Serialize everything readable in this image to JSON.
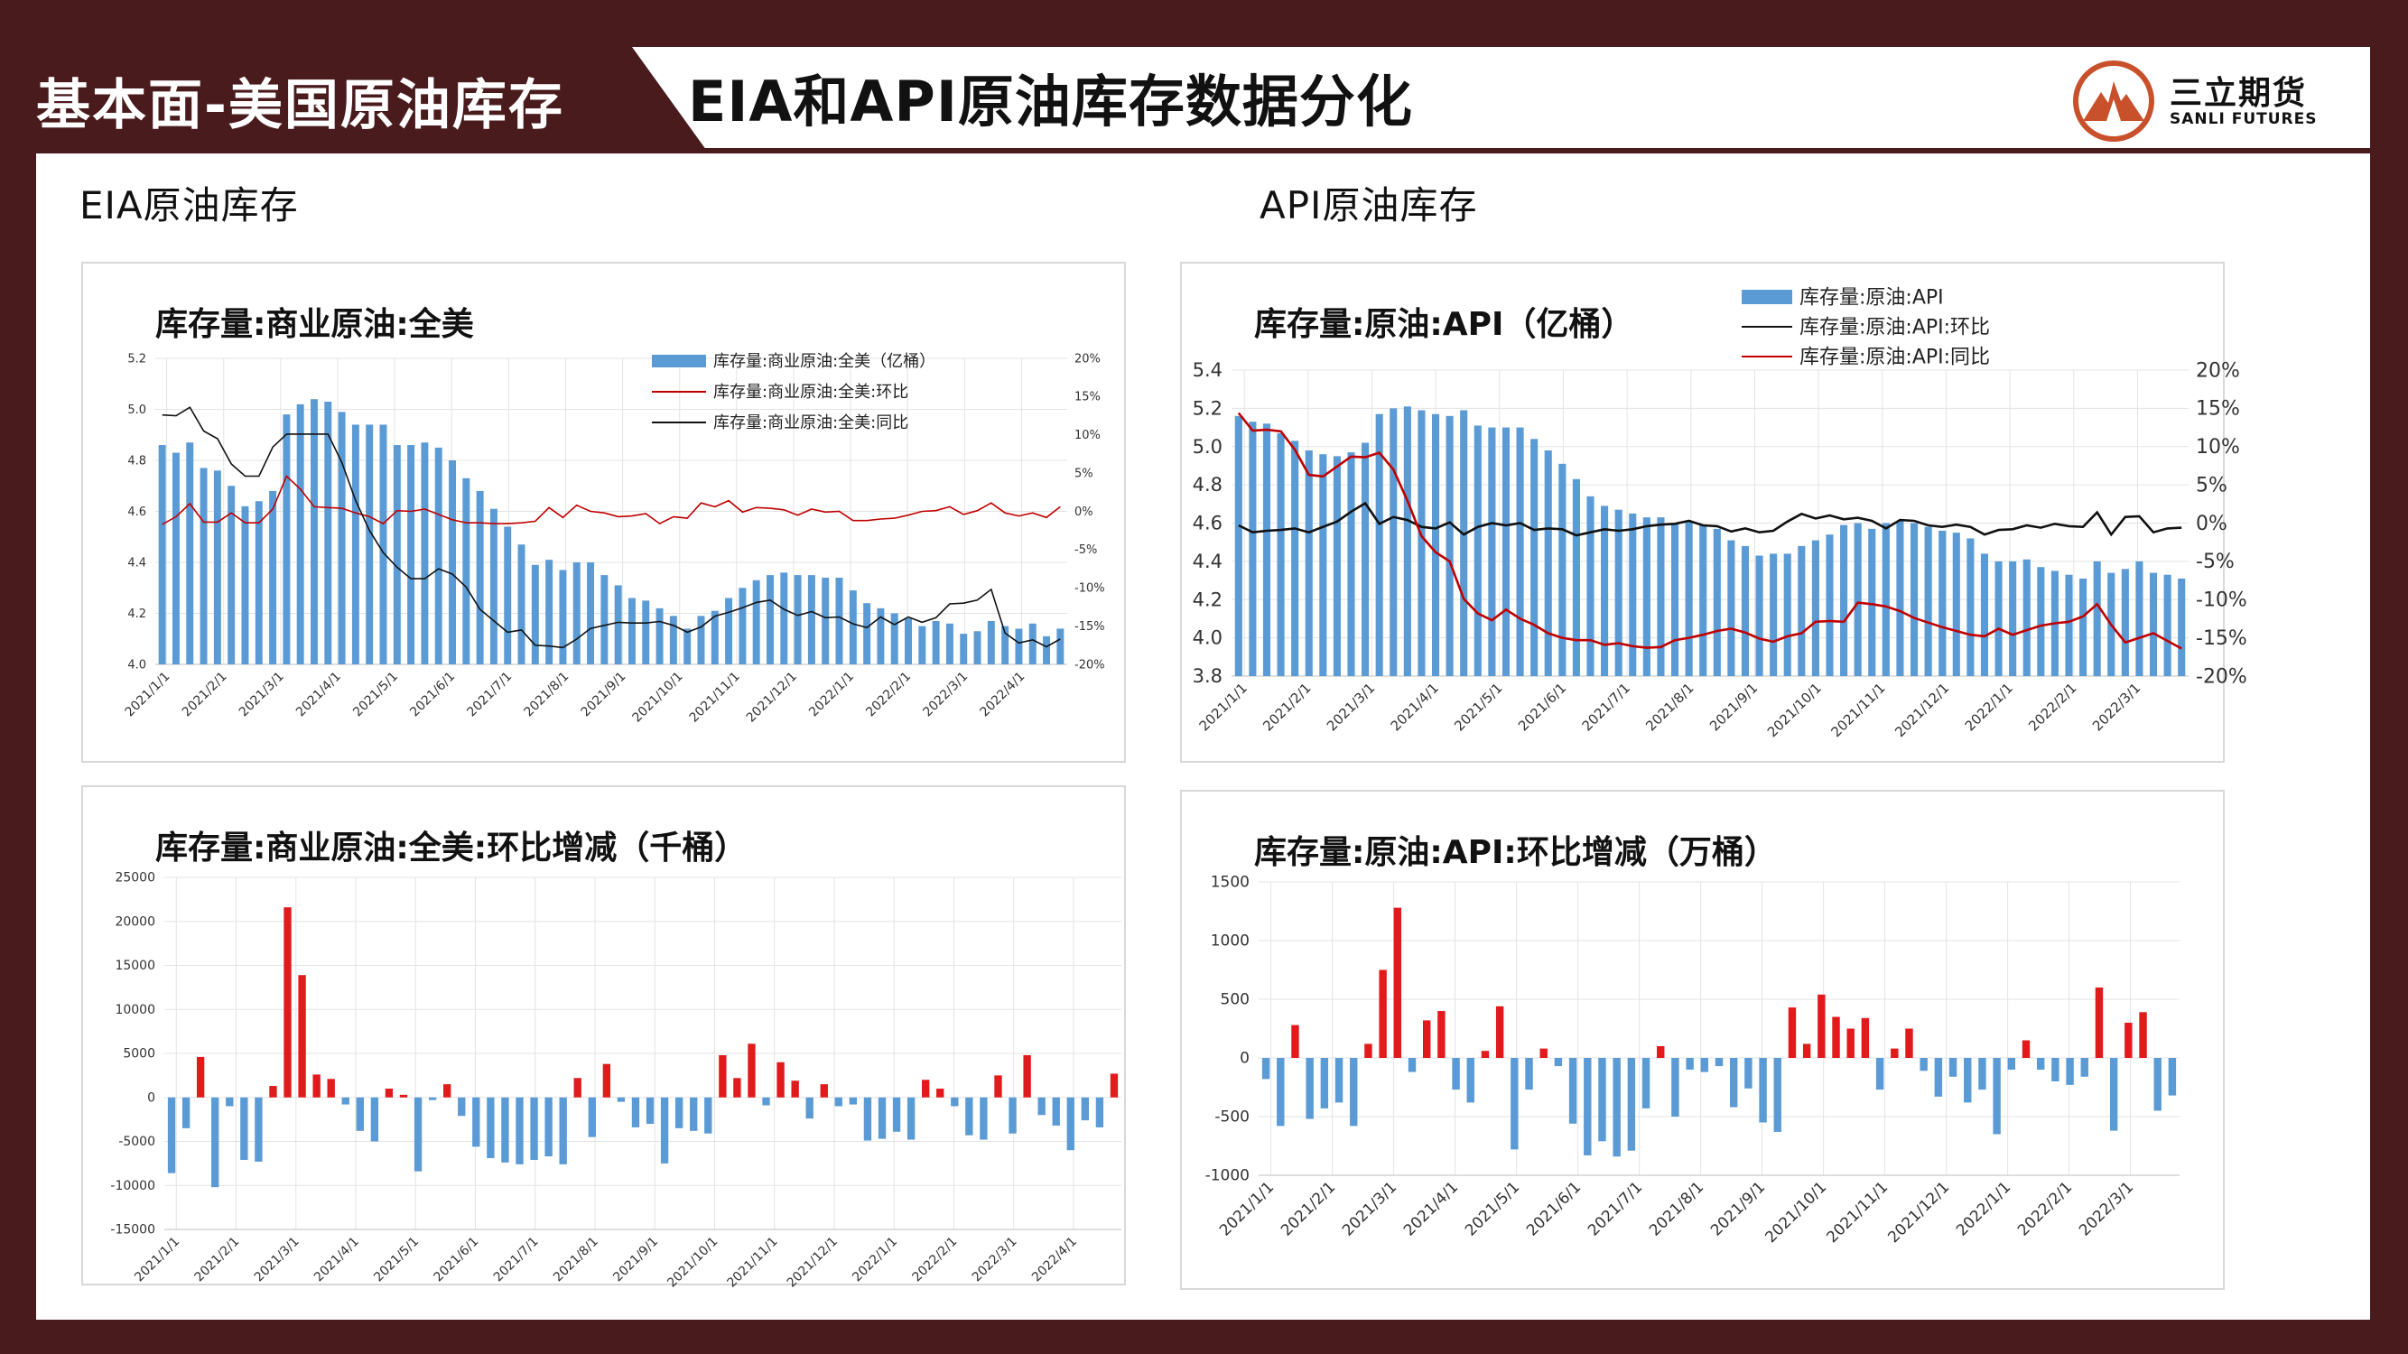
{
  "header": {
    "section_label": "基本面-美国原油库存",
    "title": "EIA和API原油库存数据分化",
    "logo_cn": "三立期货",
    "logo_en": "SANLI FUTURES"
  },
  "sections": {
    "left": "EIA原油库存",
    "right": "API原油库存"
  },
  "colors": {
    "dark_red": "#4a1b1d",
    "bar_blue": "#5b9bd5",
    "line_red": "#c00000",
    "line_black": "#111111",
    "pos_bar_red": "#e31a1c",
    "grid": "#e3e3e3"
  },
  "chart_data": [
    {
      "id": "eia_stock",
      "type": "bar",
      "title": "库存量:商业原油:全美",
      "y_ticks": [
        "5.2",
        "5.0",
        "4.8",
        "4.6",
        "4.4",
        "4.2",
        "4.0"
      ],
      "y_range": [
        4.0,
        5.2
      ],
      "y2_ticks": [
        "20%",
        "15%",
        "10%",
        "5%",
        "0%",
        "-5%",
        "-10%",
        "-15%",
        "-20%"
      ],
      "y2_range": [
        -20,
        20
      ],
      "x_labels": [
        "2021/1/1",
        "2021/2/1",
        "2021/3/1",
        "2021/4/1",
        "2021/5/1",
        "2021/6/1",
        "2021/7/1",
        "2021/8/1",
        "2021/9/1",
        "2021/10/1",
        "2021/11/1",
        "2021/12/1",
        "2022/1/1",
        "2022/2/1",
        "2022/3/1",
        "2022/4/1"
      ],
      "series": [
        {
          "name": "库存量:商业原油:全美（亿桶）",
          "type": "bar",
          "values": [
            4.86,
            4.83,
            4.87,
            4.77,
            4.76,
            4.7,
            4.62,
            4.64,
            4.68,
            4.98,
            5.02,
            5.04,
            5.03,
            4.99,
            4.94,
            4.94,
            4.94,
            4.86,
            4.86,
            4.87,
            4.85,
            4.8,
            4.73,
            4.68,
            4.61,
            4.54,
            4.47,
            4.39,
            4.41,
            4.37,
            4.4,
            4.4,
            4.35,
            4.31,
            4.26,
            4.25,
            4.22,
            4.19,
            4.14,
            4.19,
            4.21,
            4.26,
            4.3,
            4.33,
            4.35,
            4.36,
            4.35,
            4.35,
            4.34,
            4.34,
            4.29,
            4.24,
            4.22,
            4.2,
            4.18,
            4.15,
            4.17,
            4.16,
            4.12,
            4.13,
            4.17,
            4.15,
            4.14,
            4.16,
            4.11,
            4.14
          ]
        },
        {
          "name": "库存量:商业原油:全美:环比",
          "type": "line",
          "values": [
            -1.7,
            -0.7,
            1.0,
            -1.4,
            -1.4,
            -0.2,
            -1.5,
            -1.5,
            0.3,
            4.6,
            2.9,
            0.6,
            0.5,
            0.4,
            -0.2,
            -0.7,
            -1.6,
            0.1,
            0.0,
            0.3,
            -0.4,
            -1.1,
            -1.5,
            -1.5,
            -1.6,
            -1.6,
            -1.5,
            -1.3,
            0.5,
            -0.8,
            0.8,
            0.0,
            -0.2,
            -0.7,
            -0.6,
            -0.3,
            -1.6,
            -0.7,
            -0.9,
            1.1,
            0.6,
            1.4,
            -0.1,
            0.5,
            0.4,
            0.2,
            -0.5,
            0.3,
            -0.1,
            0.0,
            -1.2,
            -1.2,
            -1.0,
            -0.9,
            -0.5,
            0.0,
            0.1,
            0.6,
            -0.4,
            0.1,
            1.1,
            -0.2,
            -0.6,
            -0.2,
            -0.8,
            0.6
          ]
        },
        {
          "name": "库存量:商业原油:全美:同比",
          "type": "line",
          "values": [
            12.6,
            12.5,
            13.6,
            10.5,
            9.5,
            6.2,
            4.6,
            4.6,
            8.4,
            10.1,
            10.1,
            10.1,
            10.1,
            6.4,
            1.4,
            -2.5,
            -5.4,
            -7.3,
            -8.8,
            -8.8,
            -7.5,
            -8.2,
            -9.9,
            -12.8,
            -14.3,
            -15.8,
            -15.5,
            -17.5,
            -17.6,
            -17.8,
            -16.7,
            -15.3,
            -14.9,
            -14.5,
            -14.6,
            -14.6,
            -14.4,
            -14.9,
            -15.8,
            -15.1,
            -13.7,
            -13.2,
            -12.6,
            -11.9,
            -11.6,
            -12.8,
            -13.6,
            -13.1,
            -13.9,
            -13.8,
            -14.7,
            -15.2,
            -13.8,
            -14.8,
            -13.8,
            -14.5,
            -13.9,
            -12.1,
            -12.0,
            -11.6,
            -10.2,
            -15.9,
            -17.2,
            -16.8,
            -17.7,
            -16.7
          ]
        }
      ]
    },
    {
      "id": "eia_change",
      "type": "bar",
      "title": "库存量:商业原油:全美:环比增减（千桶）",
      "y_ticks": [
        "25000",
        "20000",
        "15000",
        "10000",
        "5000",
        "0",
        "-5000",
        "-10000",
        "-15000"
      ],
      "y_range": [
        -15000,
        25000
      ],
      "x_labels": [
        "2021/1/1",
        "2021/2/1",
        "2021/3/1",
        "2021/4/1",
        "2021/5/1",
        "2021/6/1",
        "2021/7/1",
        "2021/8/1",
        "2021/9/1",
        "2021/10/1",
        "2021/11/1",
        "2021/12/1",
        "2022/1/1",
        "2022/2/1",
        "2022/3/1",
        "2022/4/1"
      ],
      "series": [
        {
          "name": "环比增减",
          "type": "bar",
          "values": [
            -8600,
            -3500,
            4600,
            -10200,
            -1000,
            -7100,
            -7300,
            1300,
            21600,
            13900,
            2600,
            2100,
            -800,
            -3800,
            -5000,
            1000,
            300,
            -8400,
            -300,
            1500,
            -2100,
            -5600,
            -6900,
            -7400,
            -7600,
            -7100,
            -6700,
            -7600,
            2200,
            -4500,
            3800,
            -500,
            -3400,
            -3000,
            -7500,
            -3500,
            -3800,
            -4100,
            4800,
            2200,
            6100,
            -900,
            4000,
            1900,
            -2400,
            1500,
            -1000,
            -800,
            -4900,
            -4700,
            -3900,
            -4800,
            2000,
            1000,
            -1000,
            -4300,
            -4800,
            2500,
            -4100,
            4800,
            -2000,
            -3200,
            -6000,
            -2600,
            -3400,
            2700
          ]
        }
      ]
    },
    {
      "id": "api_stock",
      "type": "bar",
      "title": "库存量:原油:API（亿桶）",
      "y_ticks": [
        "5.4",
        "5.2",
        "5.0",
        "4.8",
        "4.6",
        "4.4",
        "4.2",
        "4.0",
        "3.8"
      ],
      "y_range": [
        3.8,
        5.4
      ],
      "y2_ticks": [
        "20%",
        "15%",
        "10%",
        "5%",
        "0%",
        "-5%",
        "-10%",
        "-15%",
        "-20%"
      ],
      "y2_range": [
        -20,
        20
      ],
      "x_labels": [
        "2021/1/1",
        "2021/2/1",
        "2021/3/1",
        "2021/4/1",
        "2021/5/1",
        "2021/6/1",
        "2021/7/1",
        "2021/8/1",
        "2021/9/1",
        "2021/10/1",
        "2021/11/1",
        "2021/12/1",
        "2022/1/1",
        "2022/2/1",
        "2022/3/1"
      ],
      "series": [
        {
          "name": "库存量:原油:API",
          "type": "bar",
          "values": [
            5.16,
            5.13,
            5.12,
            5.07,
            5.03,
            4.98,
            4.96,
            4.95,
            4.97,
            5.02,
            5.17,
            5.2,
            5.21,
            5.19,
            5.17,
            5.16,
            5.19,
            5.11,
            5.1,
            5.1,
            5.1,
            5.04,
            4.98,
            4.91,
            4.83,
            4.74,
            4.69,
            4.67,
            4.65,
            4.63,
            4.63,
            4.6,
            4.61,
            4.59,
            4.57,
            4.51,
            4.48,
            4.43,
            4.44,
            4.44,
            4.48,
            4.51,
            4.54,
            4.59,
            4.6,
            4.57,
            4.6,
            4.61,
            4.6,
            4.58,
            4.56,
            4.55,
            4.52,
            4.44,
            4.4,
            4.4,
            4.41,
            4.37,
            4.35,
            4.33,
            4.31,
            4.4,
            4.34,
            4.36,
            4.4,
            4.34,
            4.33,
            4.31
          ]
        },
        {
          "name": "库存量:原油:API:环比",
          "type": "line",
          "values": [
            -0.3,
            -1.2,
            -1.0,
            -0.9,
            -0.7,
            -1.2,
            -0.5,
            0.2,
            1.5,
            2.6,
            -0.1,
            0.8,
            0.4,
            -0.5,
            -0.7,
            0.1,
            -1.5,
            -0.5,
            0.0,
            -0.3,
            0.0,
            -0.9,
            -0.7,
            -0.8,
            -1.6,
            -1.2,
            -0.8,
            -1.0,
            -0.8,
            -0.4,
            -0.2,
            -0.1,
            0.3,
            -0.3,
            -0.4,
            -1.1,
            -0.7,
            -1.2,
            -1.0,
            0.2,
            1.2,
            0.6,
            1.0,
            0.5,
            0.7,
            0.3,
            -0.7,
            0.4,
            0.3,
            -0.3,
            -0.5,
            -0.2,
            -0.5,
            -1.5,
            -0.9,
            -0.8,
            -0.3,
            -0.6,
            -0.1,
            -0.4,
            -0.5,
            1.4,
            -1.5,
            0.8,
            0.9,
            -1.2,
            -0.7,
            -0.6
          ]
        },
        {
          "name": "库存量:原油:API:同比",
          "type": "line",
          "values": [
            14.4,
            12.1,
            12.2,
            12.0,
            9.6,
            6.3,
            6.1,
            7.4,
            8.7,
            8.6,
            9.2,
            7.0,
            2.9,
            -1.7,
            -3.8,
            -5.0,
            -9.9,
            -11.8,
            -12.7,
            -11.3,
            -12.5,
            -13.3,
            -14.4,
            -15.0,
            -15.3,
            -15.3,
            -15.9,
            -15.7,
            -16.1,
            -16.3,
            -16.2,
            -15.3,
            -15.0,
            -14.6,
            -14.1,
            -13.8,
            -14.3,
            -15.1,
            -15.5,
            -14.8,
            -14.4,
            -12.9,
            -12.8,
            -12.9,
            -10.4,
            -10.6,
            -10.9,
            -11.5,
            -12.4,
            -13.0,
            -13.6,
            -14.1,
            -14.6,
            -14.8,
            -13.8,
            -14.6,
            -14.0,
            -13.4,
            -13.1,
            -12.9,
            -12.2,
            -10.6,
            -13.3,
            -15.6,
            -15.0,
            -14.4,
            -15.4,
            -16.4
          ]
        }
      ]
    },
    {
      "id": "api_change",
      "type": "bar",
      "title": "库存量:原油:API:环比增减（万桶）",
      "y_ticks": [
        "1500",
        "1000",
        "500",
        "0",
        "-500",
        "-1000"
      ],
      "y_range": [
        -1000,
        1500
      ],
      "x_labels": [
        "2021/1/1",
        "2021/2/1",
        "2021/3/1",
        "2021/4/1",
        "2021/5/1",
        "2021/6/1",
        "2021/7/1",
        "2021/8/1",
        "2021/9/1",
        "2021/10/1",
        "2021/11/1",
        "2021/12/1",
        "2022/1/1",
        "2022/2/1",
        "2022/3/1"
      ],
      "series": [
        {
          "name": "环比增减",
          "type": "bar",
          "values": [
            -180,
            -580,
            280,
            -520,
            -430,
            -380,
            -580,
            120,
            750,
            1280,
            -120,
            320,
            400,
            -270,
            -380,
            60,
            440,
            -780,
            -270,
            80,
            -70,
            -560,
            -830,
            -710,
            -840,
            -790,
            -430,
            100,
            -500,
            -100,
            -120,
            -70,
            -420,
            -260,
            -550,
            -630,
            430,
            120,
            540,
            350,
            250,
            340,
            -270,
            80,
            250,
            -110,
            -330,
            -160,
            -380,
            -270,
            -650,
            -100,
            150,
            -100,
            -200,
            -230,
            -160,
            600,
            -620,
            300,
            390,
            -450,
            -320
          ]
        }
      ]
    }
  ]
}
